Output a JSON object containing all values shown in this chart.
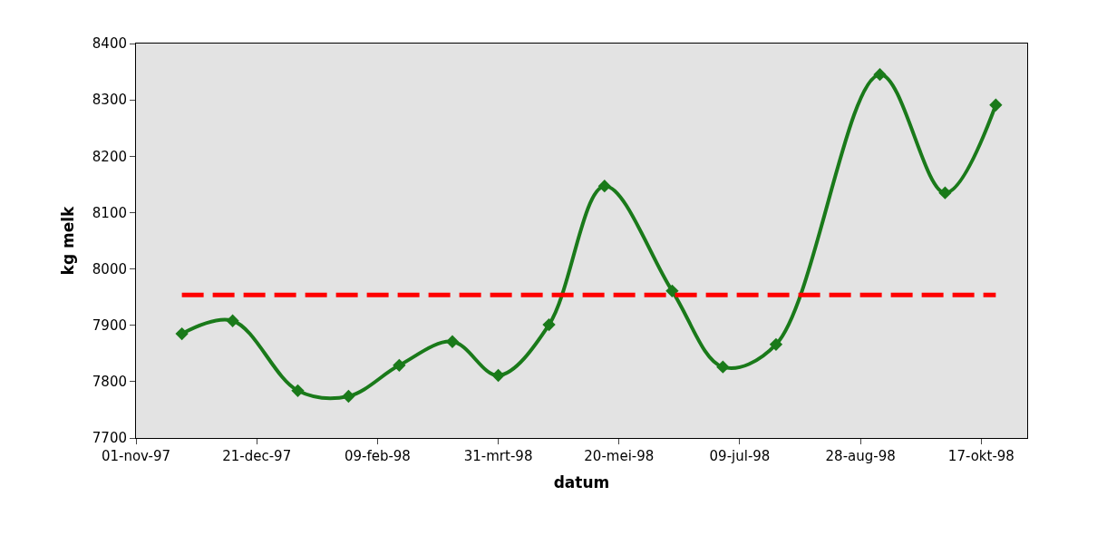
{
  "chart_data": {
    "type": "line",
    "xlabel": "datum",
    "ylabel": "kg melk",
    "series": [
      {
        "color": "#1a7a1a",
        "marker": "diamond",
        "line_style": "solid",
        "x": [
          "1997-11-20",
          "1997-12-11",
          "1998-01-07",
          "1998-01-28",
          "1998-02-18",
          "1998-03-12",
          "1998-03-31",
          "1998-04-21",
          "1998-05-14",
          "1998-06-11",
          "1998-07-02",
          "1998-07-24",
          "1998-09-05",
          "1998-10-02",
          "1998-10-23"
        ],
        "values": [
          7885,
          7908,
          7784,
          7774,
          7829,
          7871,
          7811,
          7901,
          8147,
          7961,
          7826,
          7866,
          8345,
          8135,
          8291
        ]
      },
      {
        "color": "#ff0000",
        "marker": "none",
        "line_style": "dashed",
        "x": [
          "1997-11-20",
          "1998-10-23"
        ],
        "values": [
          7954,
          7954
        ]
      }
    ],
    "xlim": [
      "1997-11-01",
      "1998-11-05"
    ],
    "xticks": [
      {
        "value": "1997-11-01",
        "label": "01-nov-97"
      },
      {
        "value": "1997-12-21",
        "label": "21-dec-97"
      },
      {
        "value": "1998-02-09",
        "label": "09-feb-98"
      },
      {
        "value": "1998-03-31",
        "label": "31-mrt-98"
      },
      {
        "value": "1998-05-20",
        "label": "20-mei-98"
      },
      {
        "value": "1998-07-09",
        "label": "09-jul-98"
      },
      {
        "value": "1998-08-28",
        "label": "28-aug-98"
      },
      {
        "value": "1998-10-17",
        "label": "17-okt-98"
      }
    ],
    "ylim": [
      7700,
      8400
    ],
    "yticks": [
      7700,
      7800,
      7900,
      8000,
      8100,
      8200,
      8300,
      8400
    ]
  }
}
